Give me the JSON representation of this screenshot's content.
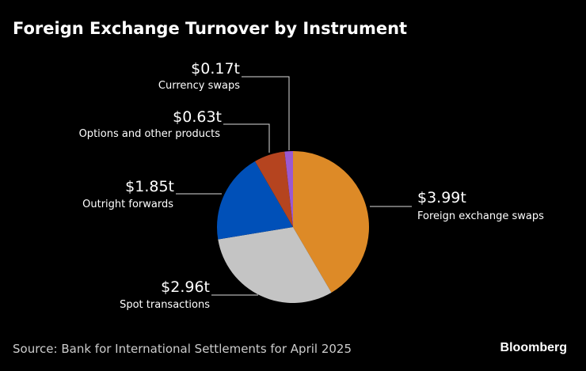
{
  "title": "Foreign Exchange Turnover by Instrument",
  "source": "Source: Bank for International Settlements for April 2025",
  "logo": "Bloomberg",
  "chart_data": {
    "type": "pie",
    "title": "Foreign Exchange Turnover by Instrument",
    "slices": [
      {
        "name": "Foreign exchange swaps",
        "value": 3.99,
        "label": "$3.99t",
        "color": "#dd8a27"
      },
      {
        "name": "Spot transactions",
        "value": 2.96,
        "label": "$2.96t",
        "color": "#c4c4c4"
      },
      {
        "name": "Outright forwards",
        "value": 1.85,
        "label": "$1.85t",
        "color": "#0050b8"
      },
      {
        "name": "Options and other products",
        "value": 0.63,
        "label": "$0.63t",
        "color": "#b5441f"
      },
      {
        "name": "Currency swaps",
        "value": 0.17,
        "label": "$0.17t",
        "color": "#9b59d0"
      }
    ],
    "start": "12 o'clock",
    "direction": "clockwise",
    "unit": "trillion USD"
  }
}
